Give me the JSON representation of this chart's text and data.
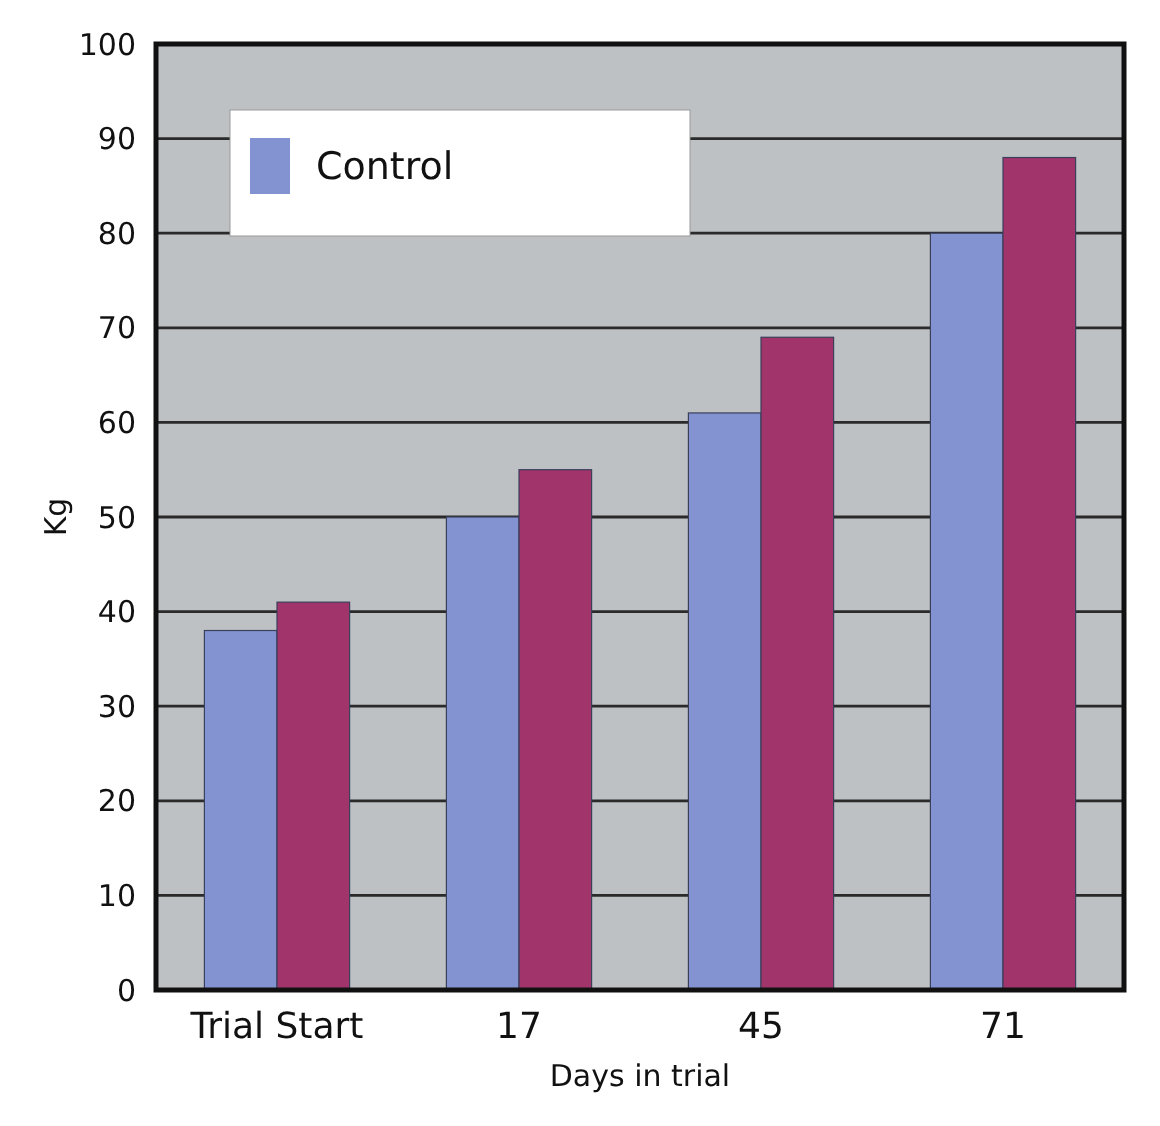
{
  "chart_data": {
    "type": "bar",
    "xlabel": "Days in trial",
    "ylabel": "Kg",
    "categories": [
      "Trial Start",
      "17",
      "45",
      "71"
    ],
    "series": [
      {
        "name": "Control",
        "color": "#8393d2",
        "values": [
          38,
          50,
          61,
          80
        ]
      },
      {
        "color": "#a2346c",
        "values": [
          41,
          55,
          69,
          88
        ]
      }
    ],
    "ylim": [
      0,
      100
    ],
    "yticks": [
      0,
      10,
      20,
      30,
      40,
      50,
      60,
      70,
      80,
      90,
      100
    ],
    "grid": "y",
    "legend": "top left"
  }
}
